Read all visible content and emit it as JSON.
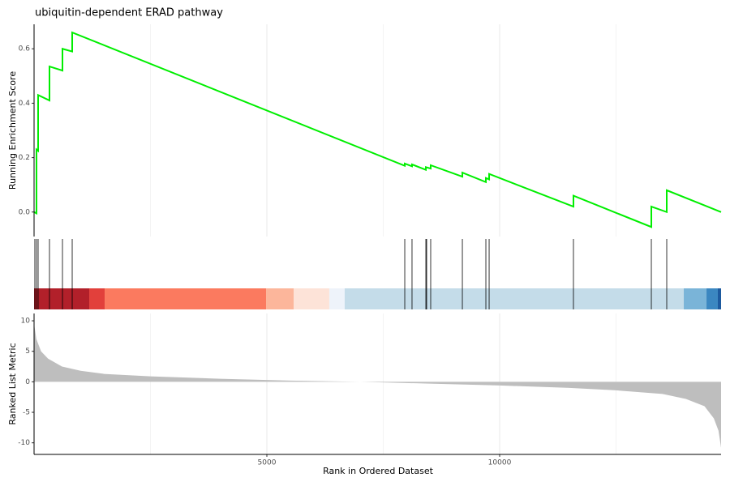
{
  "chart_data": [
    {
      "type": "line",
      "title": "ubiquitin-dependent ERAD pathway",
      "ylabel": "Running Enrichment Score",
      "color": "#00ee00",
      "x": [
        0,
        52,
        52,
        87,
        87,
        331,
        331,
        610,
        610,
        819,
        819,
        7962,
        7962,
        8118,
        8118,
        8415,
        8415,
        8519,
        8519,
        9199,
        9199,
        9704,
        9704,
        9774,
        9774,
        11585,
        11585,
        13258,
        13258,
        13589,
        13589,
        14756
      ],
      "values": [
        0,
        -0.005,
        0.23,
        0.225,
        0.43,
        0.41,
        0.535,
        0.52,
        0.6,
        0.59,
        0.66,
        0.17,
        0.178,
        0.168,
        0.175,
        0.155,
        0.165,
        0.16,
        0.172,
        0.13,
        0.145,
        0.11,
        0.125,
        0.12,
        0.14,
        0.02,
        0.06,
        -0.055,
        0.02,
        0.0,
        0.08,
        0.0
      ],
      "xlim": [
        0,
        14756
      ],
      "xticks": [
        5000,
        10000
      ],
      "xminor": [
        2500,
        7500,
        12500
      ],
      "ylim": [
        -0.09,
        0.69
      ],
      "yticks": [
        {
          "value": 0,
          "label": "0.0"
        },
        0.2,
        0.4,
        0.6
      ]
    },
    {
      "type": "rug",
      "hits": [
        17,
        52,
        87,
        331,
        610,
        819,
        7962,
        8118,
        8415,
        8432,
        8519,
        9199,
        9704,
        9774,
        11585,
        13258,
        13589
      ],
      "xlim": [
        0,
        14756
      ],
      "breaks": [
        0,
        1185,
        1516,
        4983,
        5575,
        6341,
        6672,
        13955,
        14443,
        14686,
        14756
      ],
      "colors": [
        "#b2202a",
        "#e2403b",
        "#fb7a5f",
        "#fcb69b",
        "#fde3d8",
        "#eef3fa",
        "#c4dce9",
        "#7ab4d8",
        "#3b87c1",
        "#1d5a9f"
      ]
    },
    {
      "type": "area",
      "xlabel": "Rank in Ordered Dataset",
      "ylabel": "Ranked List Metric",
      "color": "#bebebe",
      "x": [
        0,
        50,
        150,
        300,
        600,
        1000,
        1500,
        2500,
        4000,
        5500,
        7000,
        8500,
        10000,
        11500,
        12500,
        13500,
        14000,
        14400,
        14600,
        14700,
        14756
      ],
      "values": [
        9.5,
        7,
        5,
        3.8,
        2.5,
        1.8,
        1.3,
        0.9,
        0.5,
        0.2,
        0,
        -0.3,
        -0.6,
        -1,
        -1.4,
        -2,
        -2.8,
        -4,
        -6,
        -8,
        -10.8
      ],
      "xlim": [
        0,
        14756
      ],
      "xticks": [
        5000,
        10000
      ],
      "xminor": [
        2500,
        7500,
        12500
      ],
      "ylim": [
        -11.9,
        11.2
      ],
      "yticks": [
        10,
        5,
        0,
        -5,
        -10
      ]
    }
  ]
}
